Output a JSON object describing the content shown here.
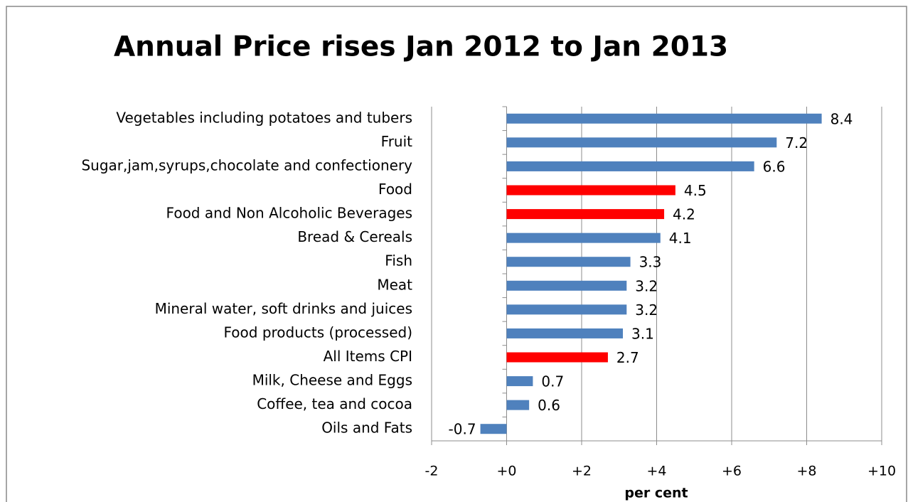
{
  "chart_data": {
    "type": "hbar",
    "title": "Annual Price rises Jan 2012 to Jan 2013",
    "x_label": "per cent",
    "categories": [
      "Vegetables including potatoes and tubers",
      "Fruit",
      "Sugar,jam,syrups,chocolate and confectionery",
      "Food",
      "Food and Non Alcoholic Beverages",
      "Bread & Cereals",
      "Fish",
      "Meat",
      "Mineral water, soft drinks and juices",
      "Food products (processed)",
      "All Items CPI",
      "Milk, Cheese and Eggs",
      "Coffee, tea and cocoa",
      "Oils and Fats"
    ],
    "values": [
      8.4,
      7.2,
      6.6,
      4.5,
      4.2,
      4.1,
      3.3,
      3.2,
      3.2,
      3.1,
      2.7,
      0.7,
      0.6,
      -0.7
    ],
    "colors": [
      "#4f81bd",
      "#4f81bd",
      "#4f81bd",
      "#ff0000",
      "#ff0000",
      "#4f81bd",
      "#4f81bd",
      "#4f81bd",
      "#4f81bd",
      "#4f81bd",
      "#ff0000",
      "#4f81bd",
      "#4f81bd",
      "#4f81bd"
    ],
    "xlim": [
      -2,
      10
    ],
    "xticks": [
      -2,
      {
        "value": 0,
        "label": "+0"
      },
      {
        "value": 2,
        "label": "+2"
      },
      {
        "value": 4,
        "label": "+4"
      },
      {
        "value": 6,
        "label": "+6"
      },
      {
        "value": 8,
        "label": "+8"
      },
      {
        "value": 10,
        "label": "+10"
      }
    ],
    "grid": true
  }
}
